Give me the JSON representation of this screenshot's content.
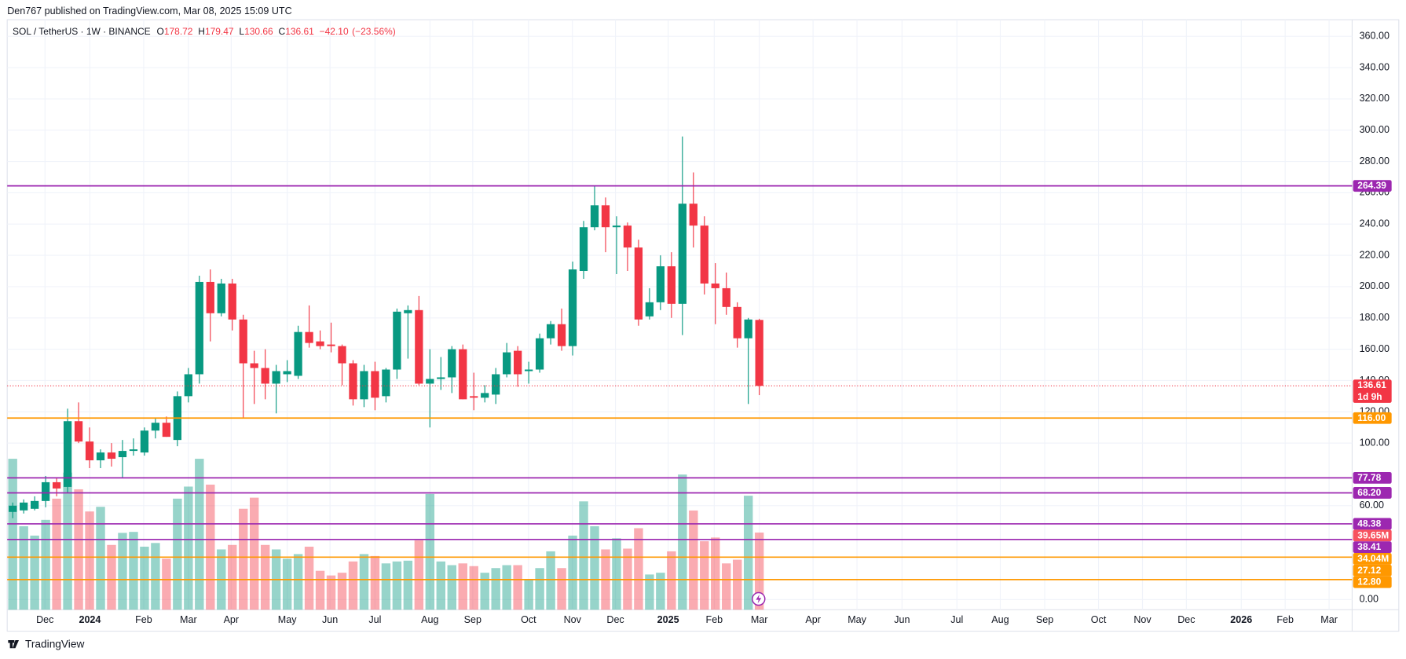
{
  "header": "Den767 published on TradingView.com, Mar 08, 2025 15:09 UTC",
  "footer": "TradingView",
  "chart_data": {
    "type": "candlestick",
    "symbol": "SOL / TetherUS · 1W · BINANCE",
    "ohlc_legend": [
      {
        "label": "O",
        "value": 178.72
      },
      {
        "label": "H",
        "value": 179.47
      },
      {
        "label": "L",
        "value": 130.66
      },
      {
        "label": "C",
        "value": 136.61
      }
    ],
    "change": {
      "value": -42.1,
      "label": "−42.10"
    },
    "change_percent": {
      "value": -23.56,
      "label": "(−23.56%)"
    },
    "up_color": "#089981",
    "down_color": "#f23645",
    "open": [
      56,
      57,
      58,
      63,
      75,
      72,
      114,
      101,
      89,
      94,
      91,
      95,
      94,
      108,
      113,
      102,
      130,
      144,
      203,
      183,
      202,
      179,
      151,
      148,
      138,
      144,
      143,
      171,
      165,
      163,
      162,
      151,
      128,
      146,
      130,
      147,
      183,
      185,
      138,
      141,
      142,
      160,
      130,
      129,
      131,
      144,
      159,
      146,
      147,
      167,
      176,
      162,
      210,
      238,
      252,
      238,
      239,
      225,
      181,
      190,
      213,
      189,
      253,
      239,
      202,
      199,
      187,
      167,
      178.72
    ],
    "high": [
      62,
      64,
      66,
      79,
      78,
      122,
      126,
      110,
      96,
      100,
      102,
      103,
      110,
      116,
      117,
      133,
      148,
      207,
      211,
      205,
      205,
      182,
      159,
      160,
      150,
      153,
      175,
      188,
      172,
      177,
      163,
      153,
      150,
      152,
      148,
      186,
      188,
      194,
      160,
      155,
      162,
      163,
      145,
      137,
      148,
      164,
      162,
      152,
      170,
      178,
      186,
      216,
      242,
      264,
      257,
      245,
      241,
      230,
      199,
      220,
      222,
      296,
      273,
      245,
      215,
      209,
      190,
      180,
      179.47
    ],
    "low": [
      52,
      55,
      57,
      59,
      66,
      68,
      100,
      84,
      84,
      85,
      78,
      92,
      92,
      103,
      104,
      98,
      126,
      138,
      165,
      181,
      172,
      116,
      125,
      128,
      119,
      139,
      141,
      161,
      160,
      158,
      137,
      124,
      123,
      121,
      126,
      141,
      154,
      137,
      110,
      134,
      132,
      128,
      121,
      126,
      125,
      142,
      136,
      138,
      145,
      163,
      159,
      156,
      205,
      236,
      222,
      208,
      210,
      175,
      179,
      185,
      180,
      169,
      225,
      195,
      176,
      182,
      161,
      125,
      130.66
    ],
    "close": [
      60,
      62,
      63,
      75,
      71,
      114,
      101,
      89,
      94,
      90,
      95,
      96,
      108,
      113,
      104,
      130,
      144,
      203,
      183,
      202,
      179,
      151,
      148,
      138,
      146,
      146,
      171,
      164,
      162,
      162,
      151,
      128,
      146,
      129,
      147,
      184,
      185,
      138,
      141,
      142,
      160,
      128,
      129,
      132,
      144,
      158,
      144,
      147,
      167,
      176,
      162,
      211,
      238,
      252,
      238,
      239,
      225,
      179,
      190,
      213,
      189,
      253,
      239,
      202,
      199,
      187,
      167,
      179,
      136.61
    ],
    "volume": [
      77.6,
      42.9,
      38.1,
      46.2,
      57.1,
      70.5,
      61.9,
      50.5,
      52.9,
      33.3,
      39.5,
      40,
      32.4,
      34.3,
      26.2,
      57.1,
      63.3,
      77.6,
      64.3,
      31,
      33.3,
      51.9,
      57.6,
      33.3,
      31,
      26.2,
      28.6,
      32.4,
      20,
      17.6,
      19,
      24.8,
      28.6,
      27.6,
      23.8,
      24.8,
      25.2,
      35.7,
      59.5,
      24.8,
      22.9,
      23.8,
      22.4,
      19,
      21.4,
      22.9,
      22.9,
      15.7,
      21.4,
      30,
      21.4,
      38.1,
      55.7,
      42.9,
      31,
      36.7,
      31.4,
      41.9,
      18.1,
      19,
      30,
      69.5,
      51,
      35.2,
      37.1,
      23.8,
      25.7,
      58.6,
      39.65
    ],
    "volume_last_label": "39.65M",
    "volume_ma_label": {
      "value": 34.04,
      "label": "34.04M"
    },
    "last_price_label": {
      "value": 136.61,
      "label": "136.61"
    },
    "countdown": "1d 9h",
    "levels": [
      {
        "value": 264.39,
        "label": "264.39",
        "color": "#9c27b0"
      },
      {
        "value": 116,
        "label": "116.00",
        "color": "#ff9800"
      },
      {
        "value": 77.78,
        "label": "77.78",
        "color": "#9c27b0"
      },
      {
        "value": 68.2,
        "label": "68.20",
        "color": "#9c27b0"
      },
      {
        "value": 48.38,
        "label": "48.38",
        "color": "#9c27b0"
      },
      {
        "value": 38.41,
        "label": "38.41",
        "color": "#9c27b0"
      },
      {
        "value": 27.12,
        "label": "27.12",
        "color": "#ff9800"
      },
      {
        "value": 12.8,
        "label": "12.80",
        "color": "#ff9800"
      }
    ],
    "ylim": [
      -6.47,
      370.59
    ],
    "yticks": [
      {
        "value": 0,
        "label": "0.00"
      },
      {
        "value": 60,
        "label": "60.00"
      },
      {
        "value": 100,
        "label": "100.00"
      },
      {
        "value": 120,
        "label": "120.00"
      },
      {
        "value": 140,
        "label": "140.00"
      },
      {
        "value": 160,
        "label": "160.00"
      },
      {
        "value": 180,
        "label": "180.00"
      },
      {
        "value": 200,
        "label": "200.00"
      },
      {
        "value": 220,
        "label": "220.00"
      },
      {
        "value": 240,
        "label": "240.00"
      },
      {
        "value": 260,
        "label": "260.00"
      },
      {
        "value": 280,
        "label": "280.00"
      },
      {
        "value": 300,
        "label": "300.00"
      },
      {
        "value": 320,
        "label": "320.00"
      },
      {
        "value": 340,
        "label": "340.00"
      },
      {
        "value": 360,
        "label": "360.00"
      }
    ],
    "xlim": [
      -0.5,
      122
    ],
    "xticks": [
      {
        "value": 2.94,
        "label": "Dec"
      },
      {
        "value": 7.03,
        "label": "2024"
      },
      {
        "value": 11.93,
        "label": "Feb"
      },
      {
        "value": 16,
        "label": "Mar"
      },
      {
        "value": 19.9,
        "label": "Apr"
      },
      {
        "value": 25,
        "label": "May"
      },
      {
        "value": 28.9,
        "label": "Jun"
      },
      {
        "value": 33,
        "label": "Jul"
      },
      {
        "value": 38,
        "label": "Aug"
      },
      {
        "value": 41.9,
        "label": "Sep"
      },
      {
        "value": 46.98,
        "label": "Oct"
      },
      {
        "value": 50.98,
        "label": "Nov"
      },
      {
        "value": 54.9,
        "label": "Dec"
      },
      {
        "value": 59.7,
        "label": "2025"
      },
      {
        "value": 63.9,
        "label": "Feb"
      },
      {
        "value": 68,
        "label": "Mar"
      },
      {
        "value": 72.9,
        "label": "Apr"
      },
      {
        "value": 76.9,
        "label": "May"
      },
      {
        "value": 81,
        "label": "Jun"
      },
      {
        "value": 86,
        "label": "Jul"
      },
      {
        "value": 89.95,
        "label": "Aug"
      },
      {
        "value": 94,
        "label": "Sep"
      },
      {
        "value": 98.9,
        "label": "Oct"
      },
      {
        "value": 102.9,
        "label": "Nov"
      },
      {
        "value": 106.9,
        "label": "Dec"
      },
      {
        "value": 111.9,
        "label": "2026"
      },
      {
        "value": 115.9,
        "label": "Feb"
      },
      {
        "value": 119.9,
        "label": "Mar"
      }
    ],
    "grid": true
  }
}
